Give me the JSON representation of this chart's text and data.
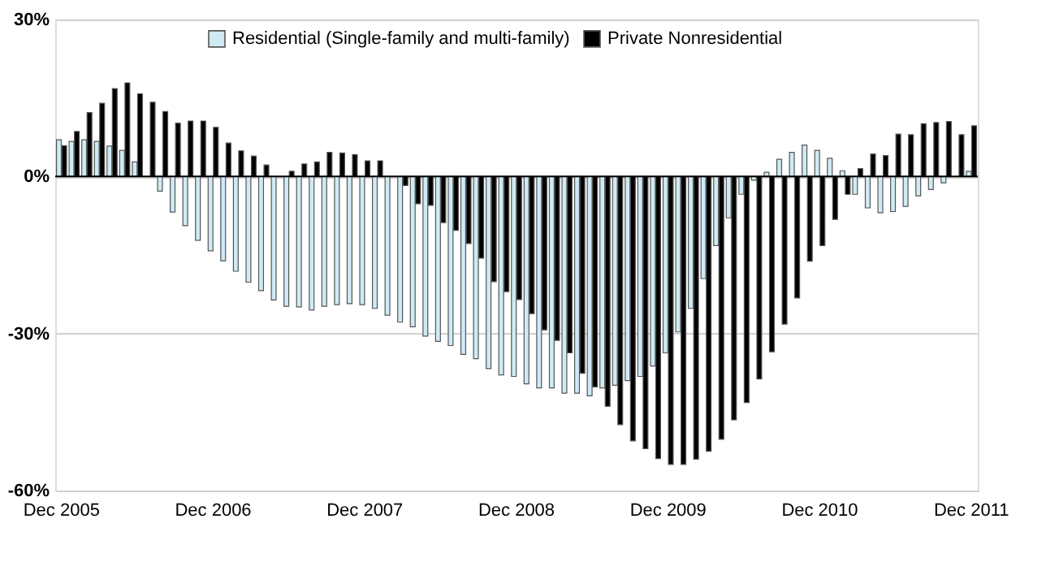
{
  "chart_data": {
    "type": "bar",
    "categories": [
      "Dec 2005",
      null,
      null,
      null,
      null,
      null,
      null,
      null,
      null,
      null,
      null,
      null,
      "Dec 2006",
      null,
      null,
      null,
      null,
      null,
      null,
      null,
      null,
      null,
      null,
      null,
      "Dec 2007",
      null,
      null,
      null,
      null,
      null,
      null,
      null,
      null,
      null,
      null,
      null,
      "Dec 2008",
      null,
      null,
      null,
      null,
      null,
      null,
      null,
      null,
      null,
      null,
      null,
      "Dec 2009",
      null,
      null,
      null,
      null,
      null,
      null,
      null,
      null,
      null,
      null,
      null,
      "Dec 2010",
      null,
      null,
      null,
      null,
      null,
      null,
      null,
      null,
      null,
      null,
      null,
      "Dec 2011"
    ],
    "series": [
      {
        "name": "Residential (Single-family and multi-family)",
        "color": "#cfeaf5",
        "values": [
          7.0,
          6.7,
          7.0,
          6.7,
          5.8,
          5.0,
          2.8,
          null,
          -2.8,
          -6.8,
          -9.4,
          -12.2,
          -14.2,
          -16.1,
          -18.1,
          -20.2,
          -21.8,
          -23.6,
          -24.8,
          -24.9,
          -25.5,
          -24.8,
          -24.5,
          -24.3,
          -24.5,
          -25.2,
          -26.5,
          -27.8,
          -28.7,
          -30.5,
          -31.5,
          -32.3,
          -34.0,
          -34.8,
          -36.7,
          -37.9,
          -38.2,
          -39.6,
          -40.4,
          -40.4,
          -41.4,
          -41.4,
          -41.9,
          -40.4,
          -39.9,
          -39.0,
          -38.2,
          -36.2,
          -33.7,
          -29.7,
          -25.2,
          -19.5,
          -13.2,
          -7.9,
          -3.4,
          -0.7,
          0.8,
          3.3,
          4.6,
          6.0,
          5.0,
          3.5,
          1.1,
          -3.4,
          -6.0,
          -6.9,
          -6.7,
          -5.7,
          -3.7,
          -2.5,
          -1.2,
          null,
          1.0
        ]
      },
      {
        "name": "Private Nonresidential",
        "color": "#000000",
        "values": [
          5.9,
          8.6,
          12.2,
          14.0,
          16.8,
          17.9,
          15.8,
          14.2,
          12.4,
          10.2,
          10.6,
          10.6,
          9.4,
          6.4,
          4.9,
          3.9,
          2.2,
          null,
          1.0,
          2.4,
          2.8,
          4.6,
          4.5,
          4.2,
          3.0,
          3.0,
          null,
          -1.7,
          -5.2,
          -5.5,
          -8.8,
          -10.3,
          -12.8,
          -15.6,
          -20.1,
          -22.0,
          -23.5,
          -26.2,
          -29.3,
          -31.3,
          -33.7,
          -37.6,
          -40.2,
          -43.9,
          -47.4,
          -50.5,
          -52.0,
          -53.9,
          -55.0,
          -55.0,
          -54.0,
          -52.5,
          -50.2,
          -46.5,
          -43.2,
          -38.7,
          -33.5,
          -28.2,
          -23.2,
          -16.2,
          -13.2,
          -8.2,
          -3.4,
          1.5,
          4.3,
          4.0,
          8.1,
          8.0,
          10.1,
          10.3,
          10.5,
          8.0,
          9.7
        ]
      }
    ],
    "ylim": [
      -60,
      30
    ],
    "yticks": [
      {
        "value": -60,
        "label": "-60%"
      },
      {
        "value": -30,
        "label": "-30%"
      },
      {
        "value": 0,
        "label": "0%"
      },
      {
        "value": 30,
        "label": "30%"
      }
    ],
    "ref_lines": [
      {
        "axis": "y",
        "value": 0,
        "color": "#000000"
      }
    ],
    "grid": "y",
    "legend": "top"
  }
}
